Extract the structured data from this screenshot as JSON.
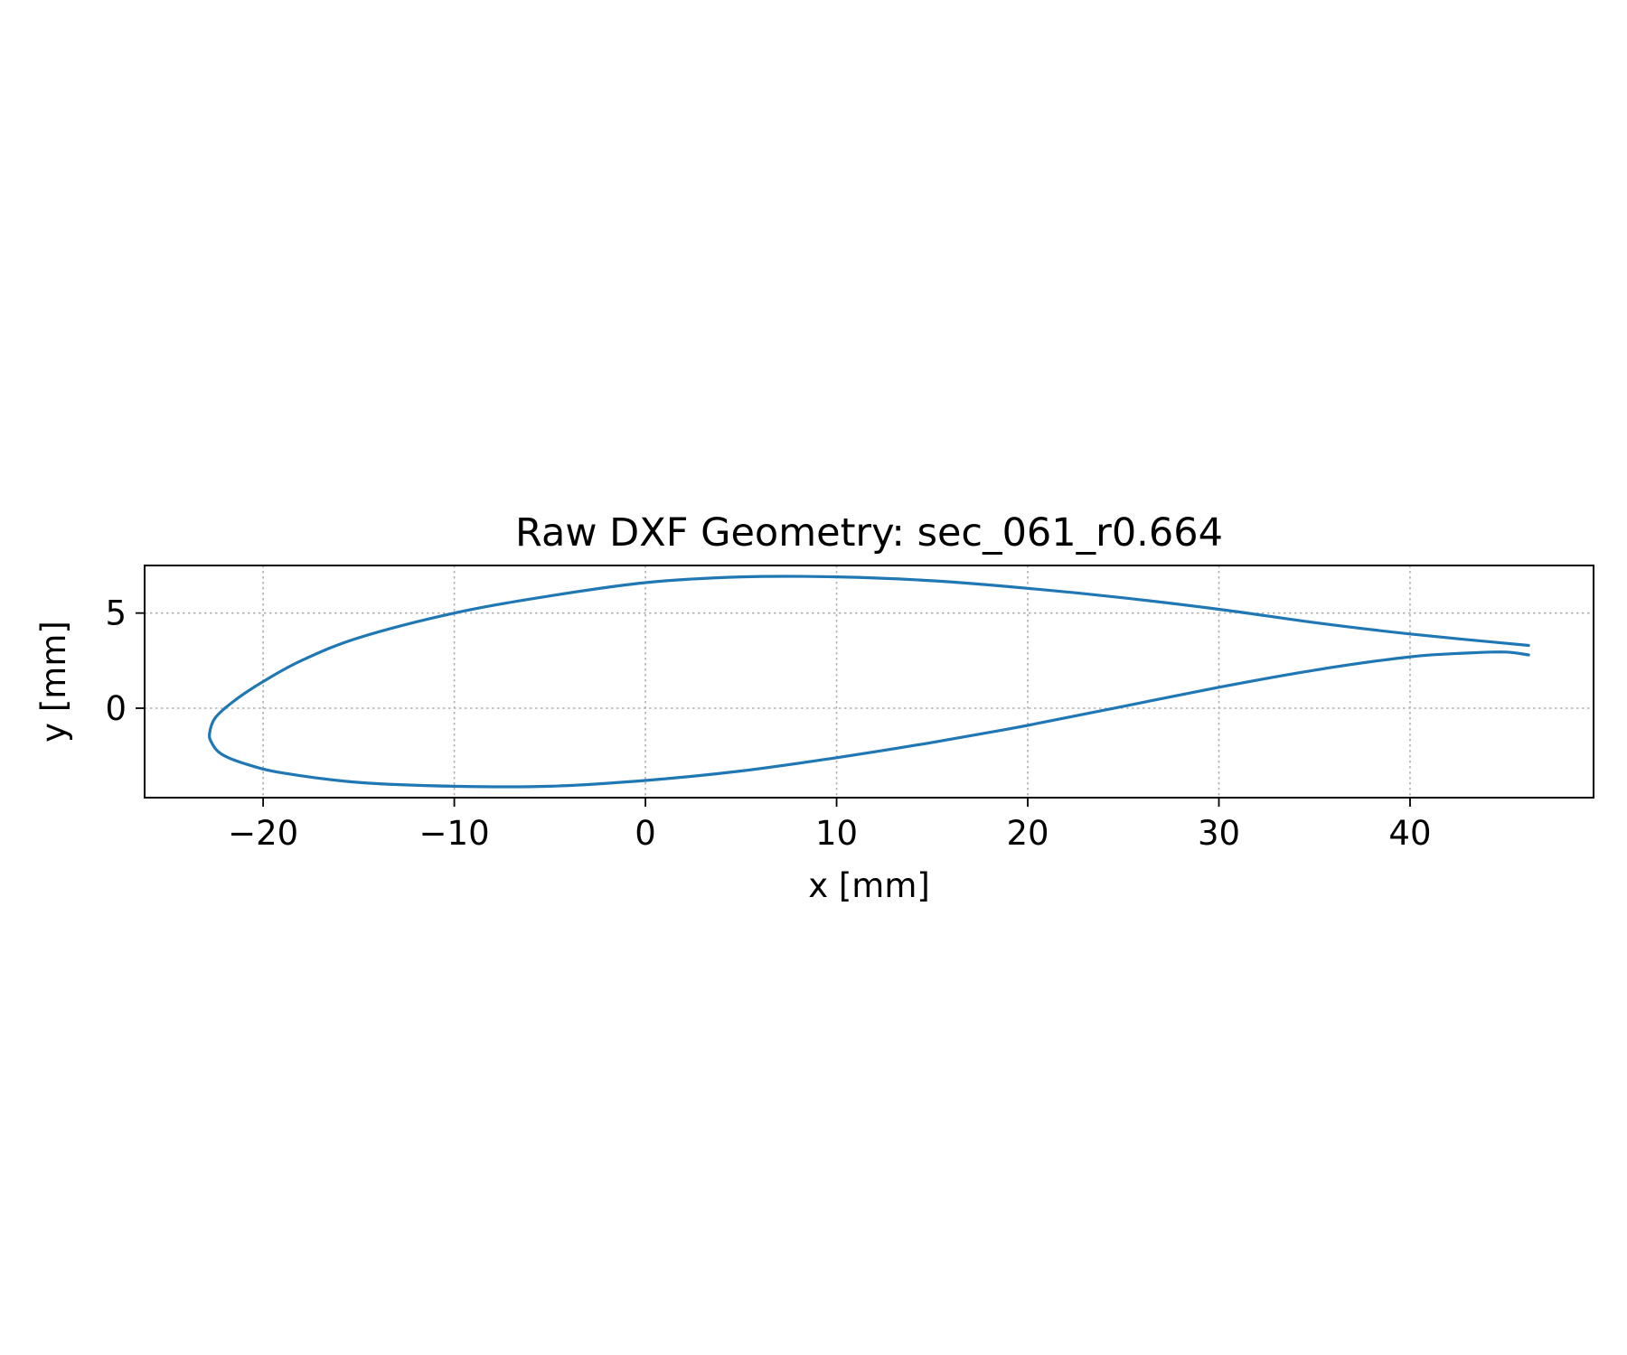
{
  "chart_data": {
    "type": "line",
    "title": "Raw DXF Geometry: sec_061_r0.664",
    "xlabel": "x [mm]",
    "ylabel": "y [mm]",
    "xlim": [
      -26.2,
      49.6
    ],
    "ylim": [
      -4.7,
      7.5
    ],
    "xticks": [
      -20,
      -10,
      0,
      10,
      20,
      30,
      40
    ],
    "xtick_labels": [
      "−20",
      "−10",
      "0",
      "10",
      "20",
      "30",
      "40"
    ],
    "yticks": [
      0,
      5
    ],
    "ytick_labels": [
      "0",
      "5"
    ],
    "grid": true,
    "line_color": "#1f77b4",
    "series": [
      {
        "x": [
          46.2,
          40.0,
          35.0,
          30.0,
          25.0,
          20.0,
          15.0,
          10.0,
          5.0,
          0.0,
          -5.0,
          -10.0,
          -15.0,
          -18.0,
          -20.0,
          -21.5,
          -22.5,
          -22.8,
          -22.7,
          -22.2,
          -21.0,
          -19.0,
          -15.0,
          -10.0,
          -5.0,
          0.0,
          5.0,
          10.0,
          15.0,
          20.0,
          25.0,
          30.0,
          35.0,
          40.0,
          43.0,
          45.0,
          46.2
        ],
        "y": [
          3.3,
          3.9,
          4.5,
          5.2,
          5.8,
          6.3,
          6.7,
          6.9,
          6.9,
          6.6,
          5.9,
          5.0,
          3.7,
          2.5,
          1.4,
          0.4,
          -0.5,
          -1.3,
          -1.8,
          -2.4,
          -2.9,
          -3.4,
          -3.9,
          -4.1,
          -4.1,
          -3.8,
          -3.3,
          -2.6,
          -1.8,
          -0.9,
          0.1,
          1.1,
          2.0,
          2.7,
          2.9,
          2.95,
          2.8
        ]
      }
    ]
  }
}
